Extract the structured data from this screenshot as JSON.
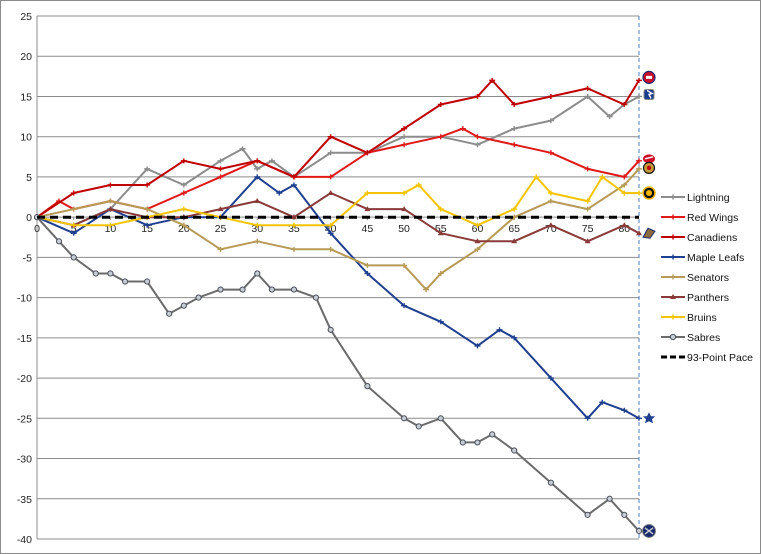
{
  "chart_data": {
    "type": "line",
    "title": "",
    "xlabel": "",
    "ylabel": "",
    "xlim": [
      0,
      82
    ],
    "ylim": [
      -40,
      25
    ],
    "yticks": [
      25,
      20,
      15,
      10,
      5,
      0,
      -5,
      -10,
      -15,
      -20,
      -25,
      -30,
      -35,
      -40
    ],
    "xticks": [
      0,
      5,
      10,
      15,
      20,
      25,
      30,
      35,
      40,
      45,
      50,
      55,
      60,
      65,
      70,
      75,
      80
    ],
    "grid": "horizontal",
    "legend_position": "right",
    "series": [
      {
        "name": "Lightning",
        "color": "#8c8c8c",
        "marker": "cross",
        "x": [
          0,
          5,
          10,
          15,
          20,
          25,
          28,
          30,
          32,
          35,
          40,
          45,
          50,
          55,
          60,
          65,
          70,
          75,
          78,
          80,
          82
        ],
        "y": [
          0,
          -1,
          1,
          6,
          4,
          7,
          8.5,
          6,
          7,
          5,
          8,
          8,
          10,
          10,
          9,
          11,
          12,
          15,
          12.5,
          14,
          15
        ]
      },
      {
        "name": "Red Wings",
        "color": "#e01818",
        "marker": "dash",
        "x": [
          0,
          3,
          5,
          10,
          15,
          20,
          25,
          30,
          35,
          40,
          45,
          50,
          55,
          58,
          60,
          65,
          70,
          75,
          80,
          82
        ],
        "y": [
          0,
          2,
          1,
          2,
          1,
          3,
          5,
          7,
          5,
          5,
          8,
          9,
          10,
          11,
          10,
          9,
          8,
          6,
          5,
          7
        ]
      },
      {
        "name": "Canadiens",
        "color": "#c00000",
        "marker": "dash",
        "x": [
          0,
          5,
          10,
          15,
          20,
          25,
          30,
          35,
          40,
          45,
          50,
          55,
          60,
          62,
          65,
          70,
          75,
          80,
          82
        ],
        "y": [
          0,
          3,
          4,
          4,
          7,
          6,
          7,
          5,
          10,
          8,
          11,
          14,
          15,
          17,
          14,
          15,
          16,
          14,
          17
        ]
      },
      {
        "name": "Maple Leafs",
        "color": "#1f3f8f",
        "marker": "dash",
        "x": [
          0,
          5,
          10,
          15,
          20,
          25,
          30,
          33,
          35,
          40,
          45,
          50,
          55,
          60,
          63,
          65,
          70,
          75,
          77,
          80,
          82
        ],
        "y": [
          0,
          -2,
          1,
          -1,
          0,
          0,
          5,
          3,
          4,
          -2,
          -7,
          -11,
          -13,
          -16,
          -14,
          -15,
          -20,
          -25,
          -23,
          -24,
          -25
        ]
      },
      {
        "name": "Senators",
        "color": "#b79a55",
        "marker": "dash",
        "x": [
          0,
          5,
          10,
          15,
          20,
          25,
          30,
          35,
          40,
          45,
          50,
          53,
          55,
          60,
          65,
          70,
          75,
          80,
          82
        ],
        "y": [
          0,
          1,
          2,
          1,
          -1,
          -4,
          -3,
          -4,
          -4,
          -6,
          -6,
          -9,
          -7,
          -4,
          0,
          2,
          1,
          4,
          6
        ]
      },
      {
        "name": "Panthers",
        "color": "#8b3a3a",
        "marker": "triangle",
        "x": [
          0,
          5,
          10,
          15,
          20,
          25,
          30,
          35,
          40,
          45,
          50,
          55,
          60,
          65,
          70,
          75,
          80,
          82
        ],
        "y": [
          0,
          -1,
          1,
          0,
          0,
          1,
          2,
          0,
          3,
          1,
          1,
          -2,
          -3,
          -3,
          -1,
          -3,
          -1,
          -2
        ]
      },
      {
        "name": "Bruins",
        "color": "#f5c400",
        "marker": "cross",
        "x": [
          0,
          5,
          10,
          15,
          20,
          25,
          30,
          35,
          40,
          45,
          50,
          52,
          55,
          60,
          65,
          68,
          70,
          75,
          77,
          80,
          82
        ],
        "y": [
          0,
          -1,
          -1,
          0,
          1,
          0,
          -1,
          -1,
          -1,
          3,
          3,
          4,
          1,
          -1,
          1,
          5,
          3,
          2,
          5,
          3,
          3
        ]
      },
      {
        "name": "Sabres",
        "color": "#6b6b6b",
        "marker": "circle",
        "x": [
          0,
          3,
          5,
          8,
          10,
          12,
          15,
          18,
          20,
          22,
          25,
          28,
          30,
          32,
          35,
          38,
          40,
          45,
          50,
          52,
          55,
          58,
          60,
          62,
          65,
          70,
          75,
          78,
          80,
          82
        ],
        "y": [
          0,
          -3,
          -5,
          -7,
          -7,
          -8,
          -8,
          -12,
          -11,
          -10,
          -9,
          -9,
          -7,
          -9,
          -9,
          -10,
          -14,
          -21,
          -25,
          -26,
          -25,
          -28,
          -28,
          -27,
          -29,
          -33,
          -37,
          -35,
          -37,
          -39
        ]
      },
      {
        "name": "93-Point Pace",
        "color": "#000000",
        "marker": "none",
        "dashed": true,
        "x": [
          0,
          82
        ],
        "y": [
          0,
          0
        ]
      }
    ]
  },
  "icons": {
    "Canadiens": "canadiens-logo-icon",
    "Lightning": "lightning-logo-icon",
    "Red Wings": "red-wings-logo-icon",
    "Senators": "senators-logo-icon",
    "Bruins": "bruins-logo-icon",
    "Panthers": "panthers-logo-icon",
    "Maple Leafs": "maple-leafs-logo-icon",
    "Sabres": "sabres-logo-icon"
  }
}
